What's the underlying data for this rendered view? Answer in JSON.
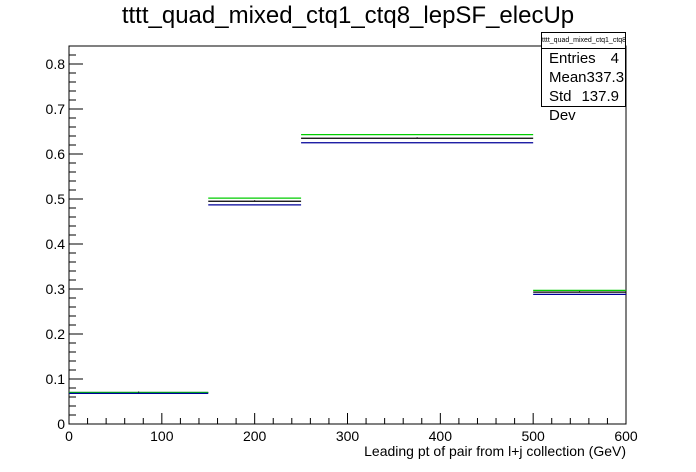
{
  "chart_data": {
    "type": "step",
    "title": "tttt_quad_mixed_ctq1_ctq8_lepSF_elecUp",
    "xlabel": "Leading pt of pair from l+j collection (GeV)",
    "ylabel": "",
    "xlim": [
      0,
      600
    ],
    "ylim": [
      0,
      0.84
    ],
    "xticks": [
      "0",
      "100",
      "200",
      "300",
      "400",
      "500",
      "600"
    ],
    "yticks": [
      "0",
      "0.1",
      "0.2",
      "0.3",
      "0.4",
      "0.5",
      "0.6",
      "0.7",
      "0.8"
    ],
    "bin_edges": [
      0,
      150,
      250,
      500,
      600
    ],
    "series": [
      {
        "color": "#000000",
        "values": [
          0.07,
          0.495,
          0.635,
          0.293
        ]
      },
      {
        "color": "#00cc00",
        "values": [
          0.07,
          0.502,
          0.643,
          0.297
        ]
      },
      {
        "color": "#000099",
        "values": [
          0.068,
          0.487,
          0.625,
          0.288
        ]
      }
    ],
    "grid": false,
    "legend": "none"
  },
  "stats": {
    "name": "tttt_quad_mixed_ctq1_ctq8_lepSF_elecUp",
    "rows": [
      {
        "label": "Entries",
        "value": "4"
      },
      {
        "label": "Mean",
        "value": "337.3"
      },
      {
        "label": "Std Dev",
        "value": "137.9"
      }
    ]
  }
}
